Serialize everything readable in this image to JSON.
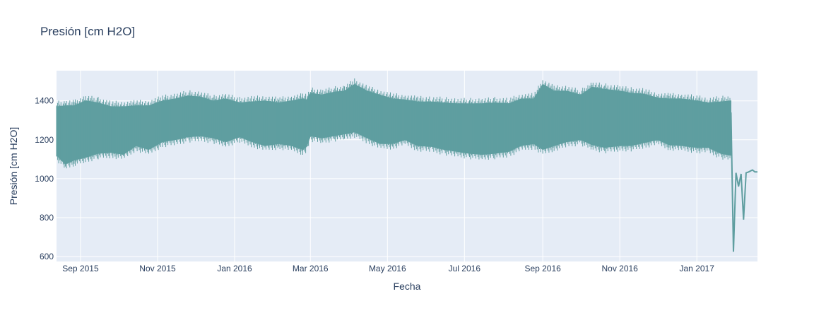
{
  "chart_data": {
    "type": "line",
    "title": "Presión [cm H2O]",
    "xlabel": "Fecha",
    "ylabel": "Presión [cm H2O]",
    "x_ticks": [
      "Sep 2015",
      "Nov 2015",
      "Jan 2016",
      "Mar 2016",
      "May 2016",
      "Jul 2016",
      "Sep 2016",
      "Nov 2016",
      "Jan 2017"
    ],
    "x_tick_dates": [
      "2015-09-01",
      "2015-11-01",
      "2016-01-01",
      "2016-03-01",
      "2016-05-01",
      "2016-07-01",
      "2016-09-01",
      "2016-11-01",
      "2017-01-01"
    ],
    "y_ticks": [
      600,
      800,
      1000,
      1200,
      1400
    ],
    "xlim": [
      "2015-08-13",
      "2017-02-18"
    ],
    "ylim": [
      575,
      1555
    ],
    "grid": true,
    "line_color": "#5f9ea0",
    "background_color": "#e5ecf6",
    "series": [
      {
        "x": [
          "2015-08-13",
          "2015-08-20",
          "2015-08-27",
          "2015-09-05",
          "2015-09-15",
          "2015-09-25",
          "2015-10-05",
          "2015-10-15",
          "2015-10-25",
          "2015-11-05",
          "2015-11-15",
          "2015-11-25",
          "2015-12-05",
          "2015-12-15",
          "2015-12-25",
          "2016-01-05",
          "2016-01-15",
          "2016-01-25",
          "2016-02-05",
          "2016-02-15",
          "2016-02-24",
          "2016-02-27",
          "2016-03-01",
          "2016-03-10",
          "2016-03-20",
          "2016-03-28",
          "2016-04-05",
          "2016-04-15",
          "2016-04-25",
          "2016-05-05",
          "2016-05-15",
          "2016-05-25",
          "2016-06-05",
          "2016-06-15",
          "2016-06-25",
          "2016-07-05",
          "2016-07-15",
          "2016-07-25",
          "2016-08-05",
          "2016-08-15",
          "2016-08-25",
          "2016-09-01",
          "2016-09-10",
          "2016-09-20",
          "2016-10-01",
          "2016-10-10",
          "2016-10-20",
          "2016-11-01",
          "2016-11-10",
          "2016-11-20",
          "2016-12-01",
          "2016-12-10",
          "2016-12-20",
          "2017-01-01",
          "2017-01-10",
          "2017-01-20",
          "2017-01-28"
        ],
        "min": [
          1120,
          1075,
          1095,
          1110,
          1130,
          1135,
          1125,
          1170,
          1150,
          1190,
          1200,
          1215,
          1220,
          1210,
          1190,
          1215,
          1190,
          1170,
          1180,
          1170,
          1150,
          1165,
          1220,
          1210,
          1220,
          1230,
          1240,
          1210,
          1180,
          1180,
          1200,
          1170,
          1165,
          1150,
          1140,
          1130,
          1125,
          1130,
          1140,
          1170,
          1180,
          1150,
          1170,
          1190,
          1200,
          1175,
          1160,
          1170,
          1170,
          1185,
          1200,
          1175,
          1170,
          1160,
          1160,
          1130,
          1120
        ],
        "max": [
          1370,
          1375,
          1375,
          1400,
          1390,
          1370,
          1370,
          1375,
          1375,
          1400,
          1410,
          1425,
          1420,
          1400,
          1410,
          1390,
          1395,
          1400,
          1390,
          1400,
          1410,
          1405,
          1440,
          1430,
          1445,
          1450,
          1485,
          1450,
          1430,
          1410,
          1405,
          1395,
          1395,
          1390,
          1385,
          1385,
          1385,
          1390,
          1385,
          1410,
          1410,
          1485,
          1450,
          1450,
          1430,
          1470,
          1460,
          1450,
          1440,
          1435,
          1415,
          1410,
          1410,
          1400,
          1390,
          1395,
          1400
        ]
      },
      {
        "x": [
          "2017-01-28",
          "2017-01-30",
          "2017-02-01",
          "2017-02-03",
          "2017-02-05",
          "2017-02-07",
          "2017-02-09",
          "2017-02-11",
          "2017-02-14",
          "2017-02-16",
          "2017-02-18"
        ],
        "y": [
          1340,
          625,
          1030,
          960,
          1025,
          790,
          1030,
          1035,
          1045,
          1035,
          1035
        ]
      }
    ]
  }
}
